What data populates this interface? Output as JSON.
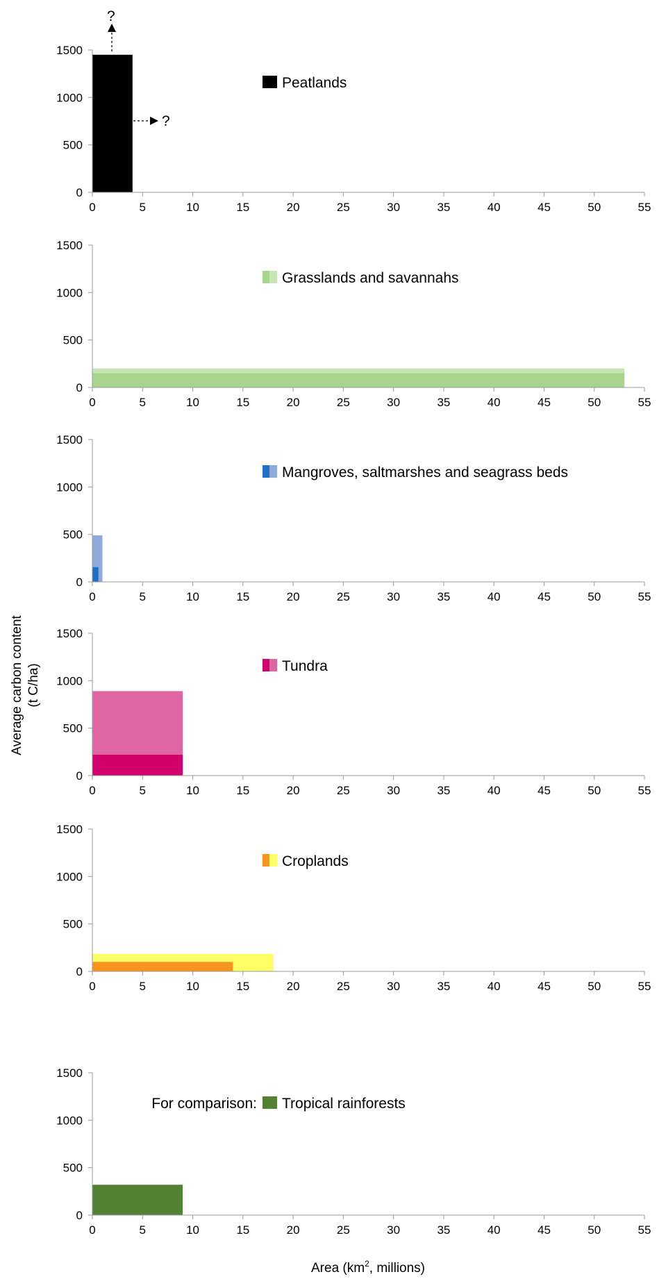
{
  "y_axis_label": {
    "line1": "Average carbon content",
    "line2": "(t C/ha)"
  },
  "x_axis_label": {
    "main": "Area (km",
    "sup": "2",
    "tail": ", millions)"
  },
  "annotations": {
    "peatlands_up": "?",
    "peatlands_right": "?"
  },
  "chart_data": [
    {
      "type": "bar",
      "legend_prefix": "",
      "legend": "Peatlands",
      "xlim": [
        0,
        55
      ],
      "ylim": [
        0,
        1500
      ],
      "xticks": [
        "0",
        "5",
        "10",
        "15",
        "20",
        "25",
        "30",
        "35",
        "40",
        "45",
        "50",
        "55"
      ],
      "yticks": [
        "0",
        "500",
        "1000",
        "1500"
      ],
      "bars": [
        {
          "x_end": 4,
          "value": 1450,
          "color": "#000000"
        }
      ],
      "legend_swatch": [
        "#000000",
        "#000000"
      ]
    },
    {
      "type": "bar",
      "legend_prefix": "",
      "legend": "Grasslands and savannahs",
      "xlim": [
        0,
        55
      ],
      "ylim": [
        0,
        1500
      ],
      "xticks": [
        "0",
        "5",
        "10",
        "15",
        "20",
        "25",
        "30",
        "35",
        "40",
        "45",
        "50",
        "55"
      ],
      "yticks": [
        "0",
        "500",
        "1000",
        "1500"
      ],
      "bars": [
        {
          "x_end": 53,
          "value": 200,
          "color": "#c8e6b4"
        },
        {
          "x_end": 53,
          "value": 150,
          "color": "#a8d48c"
        }
      ],
      "legend_swatch": [
        "#a8d48c",
        "#c8e6b4"
      ]
    },
    {
      "type": "bar",
      "legend_prefix": "",
      "legend": "Mangroves, saltmarshes and seagrass beds",
      "xlim": [
        0,
        55
      ],
      "ylim": [
        0,
        1500
      ],
      "xticks": [
        "0",
        "5",
        "10",
        "15",
        "20",
        "25",
        "30",
        "35",
        "40",
        "45",
        "50",
        "55"
      ],
      "yticks": [
        "0",
        "500",
        "1000",
        "1500"
      ],
      "bars": [
        {
          "x_end": 1,
          "value": 490,
          "color": "#8eaadb"
        },
        {
          "x_end": 0.6,
          "value": 155,
          "color": "#1f6fc5"
        }
      ],
      "legend_swatch": [
        "#1f6fc5",
        "#8eaadb"
      ]
    },
    {
      "type": "bar",
      "legend_prefix": "",
      "legend": "Tundra",
      "xlim": [
        0,
        55
      ],
      "ylim": [
        0,
        1500
      ],
      "xticks": [
        "0",
        "5",
        "10",
        "15",
        "20",
        "25",
        "30",
        "35",
        "40",
        "45",
        "50",
        "55"
      ],
      "yticks": [
        "0",
        "500",
        "1000",
        "1500"
      ],
      "bars": [
        {
          "x_end": 9,
          "value": 890,
          "color": "#e066a3"
        },
        {
          "x_end": 9,
          "value": 220,
          "color": "#d1006a"
        }
      ],
      "legend_swatch": [
        "#d1006a",
        "#e066a3"
      ]
    },
    {
      "type": "bar",
      "legend_prefix": "",
      "legend": "Croplands",
      "xlim": [
        0,
        55
      ],
      "ylim": [
        0,
        1500
      ],
      "xticks": [
        "0",
        "5",
        "10",
        "15",
        "20",
        "25",
        "30",
        "35",
        "40",
        "45",
        "50",
        "55"
      ],
      "yticks": [
        "0",
        "500",
        "1000",
        "1500"
      ],
      "bars": [
        {
          "x_end": 18,
          "value": 185,
          "color": "#ffff66"
        },
        {
          "x_end": 14,
          "value": 100,
          "color": "#f7941d"
        }
      ],
      "legend_swatch": [
        "#f7941d",
        "#ffff66"
      ]
    },
    {
      "type": "bar",
      "legend_prefix": "For comparison:",
      "legend": "Tropical rainforests",
      "xlim": [
        0,
        55
      ],
      "ylim": [
        0,
        1500
      ],
      "xticks": [
        "0",
        "5",
        "10",
        "15",
        "20",
        "25",
        "30",
        "35",
        "40",
        "45",
        "50",
        "55"
      ],
      "yticks": [
        "0",
        "500",
        "1000",
        "1500"
      ],
      "bars": [
        {
          "x_end": 9,
          "value": 320,
          "color": "#548235"
        }
      ],
      "legend_swatch": [
        "#548235",
        "#548235"
      ]
    }
  ]
}
